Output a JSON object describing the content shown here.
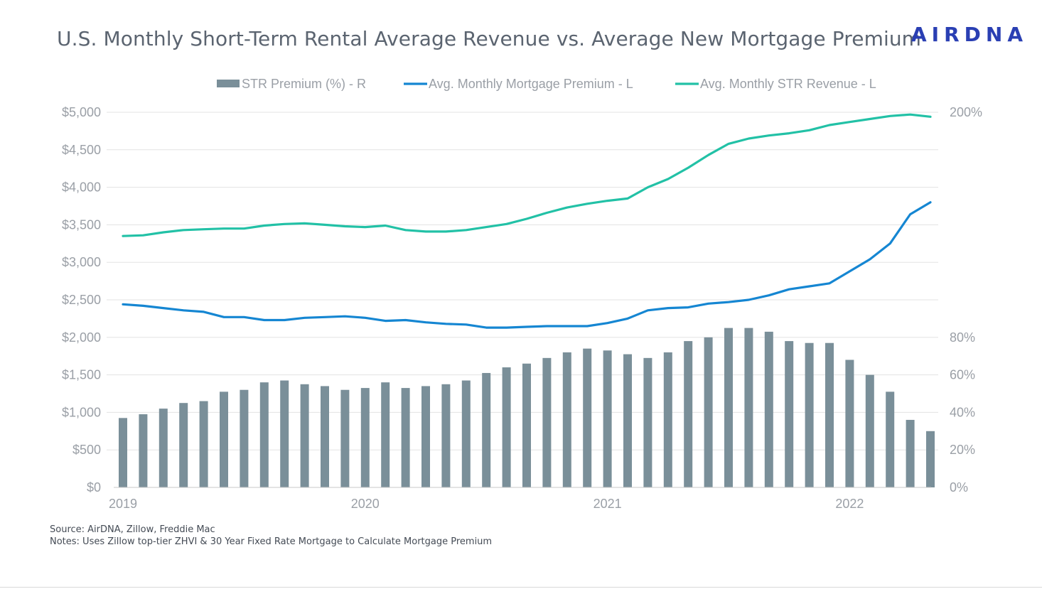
{
  "header": {
    "title": "U.S. Monthly Short-Term Rental Average Revenue vs. Average New Mortgage Premium",
    "logo_text": "AIRDNA"
  },
  "footer": {
    "source": "Source: AirDNA, Zillow, Freddie Mac",
    "notes": "Notes: Uses Zillow top-tier ZHVI & 30 Year Fixed Rate Mortgage to Calculate Mortgage Premium"
  },
  "colors": {
    "bars": "#7a8f99",
    "mortgage": "#1586d2",
    "str_revenue": "#22c1a6",
    "grid": "#e3e3e3",
    "axis_text": "#9a9fa6"
  },
  "chart_data": {
    "type": "bar+line",
    "title": "U.S. Monthly Short-Term Rental Average Revenue vs. Average New Mortgage Premium",
    "x_tick_labels": [
      "2019",
      "2020",
      "2021",
      "2022"
    ],
    "x_tick_month_index": [
      0,
      12,
      24,
      36
    ],
    "n_months": 41,
    "legend_position": "top",
    "grid": true,
    "y_left": {
      "ylim": [
        0,
        5000
      ],
      "ticks": [
        0,
        500,
        1000,
        1500,
        2000,
        2500,
        3000,
        3500,
        4000,
        4500,
        5000
      ],
      "tick_labels": [
        "$0",
        "$500",
        "$1,000",
        "$1,500",
        "$2,000",
        "$2,500",
        "$3,000",
        "$3,500",
        "$4,000",
        "$4,500",
        "$5,000"
      ]
    },
    "y_right": {
      "ylim": [
        0,
        200
      ],
      "ticks": [
        0,
        20,
        40,
        60,
        80,
        200
      ],
      "tick_labels": [
        "0%",
        "20%",
        "40%",
        "60%",
        "80%",
        "200%"
      ]
    },
    "series": [
      {
        "name": "STR Premium (%) - R",
        "type": "bar",
        "axis": "right",
        "values": [
          37,
          39,
          42,
          45,
          46,
          51,
          52,
          56,
          57,
          55,
          54,
          52,
          53,
          56,
          53,
          54,
          55,
          57,
          61,
          64,
          66,
          69,
          72,
          74,
          73,
          71,
          69,
          72,
          78,
          80,
          85,
          85,
          83,
          78,
          77,
          77,
          68,
          60,
          51,
          36,
          30
        ]
      },
      {
        "name": "Avg. Monthly Mortgage Premium - L",
        "type": "line",
        "axis": "left",
        "values": [
          2440,
          2420,
          2390,
          2360,
          2340,
          2270,
          2270,
          2230,
          2230,
          2260,
          2270,
          2280,
          2260,
          2220,
          2230,
          2200,
          2180,
          2170,
          2130,
          2130,
          2140,
          2150,
          2150,
          2150,
          2190,
          2250,
          2360,
          2390,
          2400,
          2450,
          2470,
          2500,
          2560,
          2640,
          2680,
          2720,
          2880,
          3040,
          3250,
          3640,
          3800
        ]
      },
      {
        "name": "Avg. Monthly STR Revenue - L",
        "type": "line",
        "axis": "left",
        "values": [
          3350,
          3360,
          3400,
          3430,
          3440,
          3450,
          3450,
          3490,
          3510,
          3520,
          3500,
          3480,
          3470,
          3490,
          3430,
          3410,
          3410,
          3430,
          3470,
          3510,
          3580,
          3660,
          3730,
          3780,
          3820,
          3850,
          4000,
          4110,
          4260,
          4430,
          4580,
          4650,
          4690,
          4720,
          4760,
          4830,
          4870,
          4910,
          4950,
          4970,
          4940
        ]
      }
    ]
  }
}
